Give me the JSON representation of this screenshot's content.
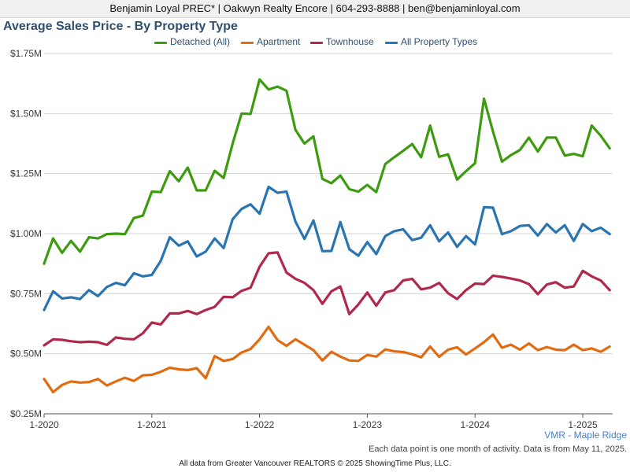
{
  "header": {
    "text": "Benjamin Loyal PREC* | Oakwyn Realty Encore | 604-293-8888 | ben@benjaminloyal.com"
  },
  "chart_data": {
    "type": "line",
    "title": "Average Sales Price - By Property Type",
    "x_start": "2020-01",
    "x_tick_labels": [
      "1-2020",
      "1-2021",
      "1-2022",
      "1-2023",
      "1-2024",
      "1-2025"
    ],
    "y_tick_labels": [
      "$0.25M",
      "$0.50M",
      "$0.75M",
      "$1.00M",
      "$1.25M",
      "$1.50M",
      "$1.75M"
    ],
    "y_ticks": [
      0.25,
      0.5,
      0.75,
      1.0,
      1.25,
      1.5,
      1.75
    ],
    "ylim": [
      0.25,
      1.75
    ],
    "y_unit": "$M",
    "grid": true,
    "legend_position": "top",
    "series": [
      {
        "name": "Detached (All)",
        "color": "#3d9b0f",
        "values": [
          0.875,
          0.98,
          0.92,
          0.97,
          0.925,
          0.985,
          0.98,
          0.998,
          1.0,
          0.998,
          1.065,
          1.075,
          1.175,
          1.173,
          1.26,
          1.218,
          1.275,
          1.18,
          1.18,
          1.262,
          1.232,
          1.375,
          1.5,
          1.498,
          1.642,
          1.6,
          1.612,
          1.595,
          1.432,
          1.375,
          1.405,
          1.228,
          1.21,
          1.242,
          1.185,
          1.175,
          1.203,
          1.173,
          1.29,
          1.318,
          1.345,
          1.373,
          1.318,
          1.45,
          1.32,
          1.33,
          1.225,
          1.26,
          1.293,
          1.562,
          1.425,
          1.3,
          1.327,
          1.348,
          1.4,
          1.342,
          1.4,
          1.4,
          1.325,
          1.332,
          1.322,
          1.45,
          1.408,
          1.355
        ]
      },
      {
        "name": "Apartment",
        "color": "#e06b10",
        "values": [
          0.395,
          0.34,
          0.37,
          0.385,
          0.38,
          0.382,
          0.395,
          0.368,
          0.385,
          0.4,
          0.387,
          0.41,
          0.412,
          0.425,
          0.442,
          0.435,
          0.432,
          0.44,
          0.398,
          0.49,
          0.47,
          0.478,
          0.505,
          0.52,
          0.56,
          0.612,
          0.557,
          0.533,
          0.56,
          0.538,
          0.515,
          0.472,
          0.508,
          0.488,
          0.472,
          0.47,
          0.495,
          0.488,
          0.518,
          0.51,
          0.507,
          0.498,
          0.485,
          0.53,
          0.487,
          0.517,
          0.527,
          0.497,
          0.522,
          0.548,
          0.58,
          0.525,
          0.538,
          0.517,
          0.543,
          0.515,
          0.528,
          0.517,
          0.515,
          0.538,
          0.515,
          0.522,
          0.508,
          0.53
        ]
      },
      {
        "name": "Townhouse",
        "color": "#b0284a",
        "values": [
          0.535,
          0.56,
          0.558,
          0.552,
          0.548,
          0.55,
          0.548,
          0.537,
          0.568,
          0.562,
          0.56,
          0.585,
          0.63,
          0.622,
          0.668,
          0.668,
          0.678,
          0.665,
          0.682,
          0.695,
          0.737,
          0.735,
          0.762,
          0.775,
          0.862,
          0.918,
          0.922,
          0.838,
          0.812,
          0.795,
          0.765,
          0.708,
          0.76,
          0.78,
          0.665,
          0.705,
          0.755,
          0.7,
          0.755,
          0.765,
          0.805,
          0.812,
          0.768,
          0.775,
          0.795,
          0.752,
          0.728,
          0.765,
          0.792,
          0.79,
          0.825,
          0.82,
          0.813,
          0.805,
          0.79,
          0.748,
          0.788,
          0.798,
          0.775,
          0.78,
          0.845,
          0.822,
          0.805,
          0.765
        ]
      },
      {
        "name": "All Property Types",
        "color": "#2a74b0",
        "values": [
          0.682,
          0.76,
          0.73,
          0.735,
          0.728,
          0.765,
          0.74,
          0.778,
          0.795,
          0.785,
          0.835,
          0.822,
          0.828,
          0.887,
          0.985,
          0.95,
          0.968,
          0.905,
          0.925,
          0.98,
          0.94,
          1.06,
          1.103,
          1.122,
          1.083,
          1.195,
          1.17,
          1.175,
          1.05,
          0.978,
          1.055,
          0.927,
          0.928,
          1.048,
          0.935,
          0.908,
          0.965,
          0.915,
          0.99,
          1.01,
          1.018,
          0.973,
          0.983,
          1.035,
          0.968,
          1.005,
          0.945,
          0.99,
          0.955,
          1.11,
          1.108,
          0.998,
          1.01,
          1.032,
          1.035,
          0.992,
          1.04,
          1.005,
          1.035,
          0.97,
          1.04,
          1.01,
          1.025,
          0.998
        ]
      }
    ]
  },
  "region_label": "VMR - Maple Ridge",
  "note": "Each data point is one month of activity. Data is from May 11, 2025.",
  "footer": "All data from Greater Vancouver REALTORS © 2025 ShowingTime Plus, LLC."
}
